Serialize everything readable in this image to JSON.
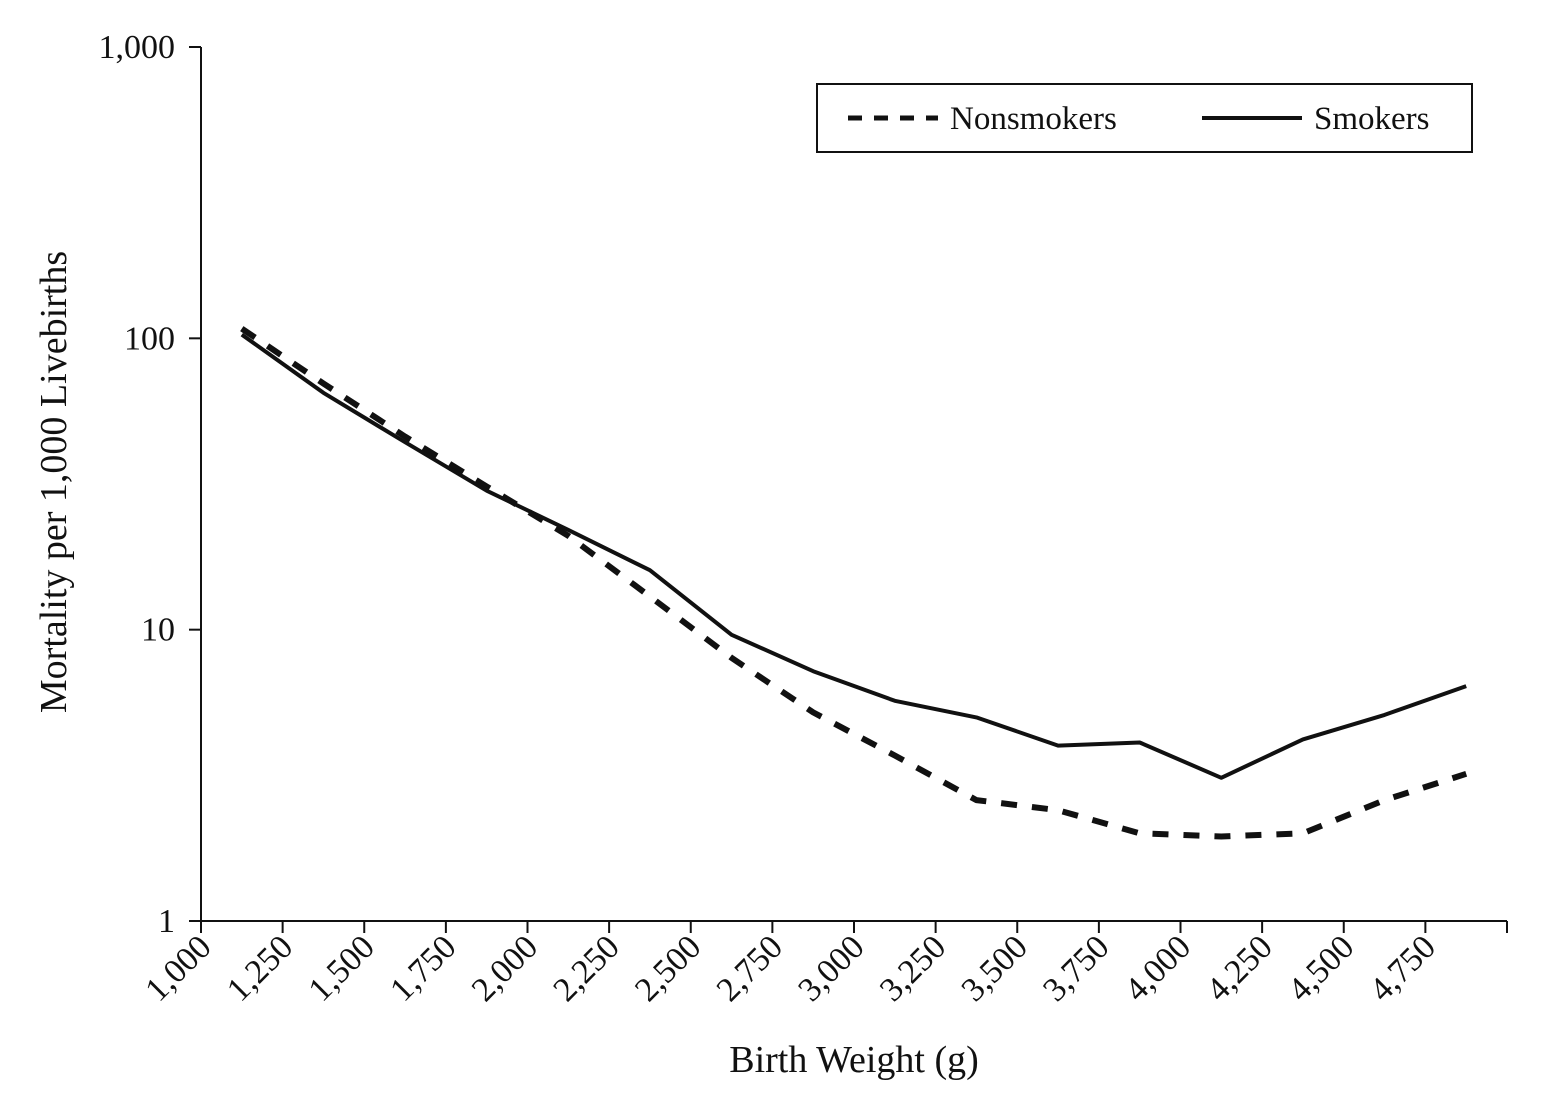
{
  "chart_data": {
    "type": "line",
    "title": "",
    "xlabel": "Birth Weight (g)",
    "ylabel": "Mortality per 1,000 Livebirths",
    "x_scale": "linear",
    "y_scale": "log",
    "xlim": [
      1000,
      5000
    ],
    "ylim": [
      1,
      1000
    ],
    "x_ticks": [
      1000,
      1250,
      1500,
      1750,
      2000,
      2250,
      2500,
      2750,
      3000,
      3250,
      3500,
      3750,
      4000,
      4250,
      4500,
      4750
    ],
    "x_tick_labels": [
      "1,000",
      "1,250",
      "1,500",
      "1,750",
      "2,000",
      "2,250",
      "2,500",
      "2,750",
      "3,000",
      "3,250",
      "3,500",
      "3,750",
      "4,000",
      "4,250",
      "4,500",
      "4,750"
    ],
    "y_ticks": [
      1,
      10,
      100,
      1000
    ],
    "y_tick_labels": [
      "1",
      "10",
      "100",
      "1,000"
    ],
    "grid": false,
    "legend": {
      "position": "top-right",
      "boxed": true
    },
    "x": [
      1125,
      1375,
      1625,
      1875,
      2125,
      2375,
      2625,
      2875,
      3125,
      3375,
      3625,
      3875,
      4125,
      4375,
      4625,
      4875
    ],
    "series": [
      {
        "name": "Nonsmokers",
        "line_style": "dashed",
        "color": "#111111",
        "values": [
          108,
          70,
          46,
          31,
          21,
          13,
          8,
          5.2,
          3.7,
          2.6,
          2.4,
          2.0,
          1.95,
          2.0,
          2.6,
          3.2
        ]
      },
      {
        "name": "Smokers",
        "line_style": "solid",
        "color": "#111111",
        "values": [
          103,
          65,
          44,
          30,
          22,
          16,
          9.6,
          7.2,
          5.7,
          5.0,
          4.0,
          4.1,
          3.1,
          4.2,
          5.1,
          6.4
        ]
      }
    ]
  }
}
